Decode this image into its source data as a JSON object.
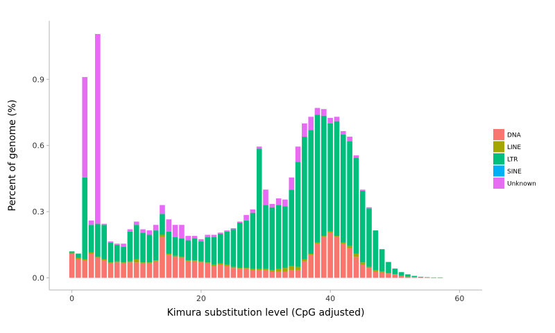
{
  "chart_data": {
    "type": "bar",
    "stacked": true,
    "xlabel": "Kimura substitution level (CpG adjusted)",
    "ylabel": "Percent of genome (%)",
    "xlim": [
      -3.5,
      63.5
    ],
    "ylim": [
      -0.055,
      1.165
    ],
    "xticks": [
      0,
      20,
      40,
      60
    ],
    "yticks": [
      0.0,
      0.3,
      0.6,
      0.9
    ],
    "ytick_labels": [
      "0.0",
      "0.3",
      "0.6",
      "0.9"
    ],
    "grid": false,
    "legend_position": "right",
    "bins": [
      0,
      1,
      2,
      3,
      4,
      5,
      6,
      7,
      8,
      9,
      10,
      11,
      12,
      13,
      14,
      15,
      16,
      17,
      18,
      19,
      20,
      21,
      22,
      23,
      24,
      25,
      26,
      27,
      28,
      29,
      30,
      31,
      32,
      33,
      34,
      35,
      36,
      37,
      38,
      39,
      40,
      41,
      42,
      43,
      44,
      45,
      46,
      47,
      48,
      49,
      50,
      51,
      52,
      53,
      54,
      55,
      56,
      57
    ],
    "series": [
      {
        "name": "DNA",
        "color": "#F8766D",
        "values": [
          0.11,
          0.085,
          0.08,
          0.11,
          0.09,
          0.08,
          0.065,
          0.07,
          0.065,
          0.07,
          0.07,
          0.065,
          0.065,
          0.075,
          0.185,
          0.105,
          0.095,
          0.09,
          0.075,
          0.075,
          0.07,
          0.065,
          0.055,
          0.06,
          0.055,
          0.045,
          0.04,
          0.04,
          0.035,
          0.035,
          0.035,
          0.03,
          0.03,
          0.03,
          0.035,
          0.035,
          0.075,
          0.105,
          0.155,
          0.185,
          0.205,
          0.185,
          0.155,
          0.135,
          0.095,
          0.06,
          0.045,
          0.03,
          0.025,
          0.02,
          0.015,
          0.01,
          0.005,
          0.003,
          0.002,
          0.001,
          0.001,
          0.001
        ]
      },
      {
        "name": "LINE",
        "color": "#A3A500",
        "values": [
          0.003,
          0.005,
          0.005,
          0.005,
          0.005,
          0.005,
          0.005,
          0.005,
          0.005,
          0.005,
          0.015,
          0.005,
          0.005,
          0.005,
          0.01,
          0.005,
          0.005,
          0.005,
          0.005,
          0.005,
          0.005,
          0.005,
          0.005,
          0.005,
          0.005,
          0.005,
          0.005,
          0.005,
          0.005,
          0.005,
          0.005,
          0.005,
          0.01,
          0.015,
          0.02,
          0.015,
          0.01,
          0.005,
          0.005,
          0.005,
          0.005,
          0.005,
          0.005,
          0.01,
          0.015,
          0.01,
          0.005,
          0.005,
          0.005,
          0.002,
          0.002,
          0.001,
          0.001,
          0.001,
          0,
          0,
          0,
          0
        ]
      },
      {
        "name": "LTR",
        "color": "#00BF7D",
        "values": [
          0.007,
          0.02,
          0.37,
          0.125,
          0.15,
          0.155,
          0.09,
          0.075,
          0.07,
          0.135,
          0.155,
          0.135,
          0.125,
          0.135,
          0.095,
          0.1,
          0.085,
          0.085,
          0.09,
          0.1,
          0.09,
          0.115,
          0.125,
          0.135,
          0.15,
          0.17,
          0.205,
          0.215,
          0.255,
          0.545,
          0.29,
          0.285,
          0.29,
          0.28,
          0.345,
          0.475,
          0.555,
          0.56,
          0.58,
          0.545,
          0.49,
          0.52,
          0.49,
          0.475,
          0.435,
          0.325,
          0.265,
          0.18,
          0.1,
          0.05,
          0.025,
          0.015,
          0.01,
          0.005,
          0.003,
          0.002,
          0.001,
          0.001
        ]
      },
      {
        "name": "SINE",
        "color": "#00B0F6",
        "values": [
          0,
          0,
          0,
          0,
          0,
          0,
          0,
          0,
          0,
          0,
          0,
          0,
          0,
          0,
          0,
          0,
          0,
          0,
          0,
          0,
          0,
          0,
          0,
          0,
          0,
          0,
          0,
          0,
          0,
          0,
          0,
          0,
          0,
          0,
          0,
          0,
          0,
          0,
          0,
          0,
          0,
          0,
          0,
          0,
          0,
          0,
          0,
          0,
          0,
          0,
          0,
          0,
          0,
          0,
          0,
          0,
          0,
          0
        ]
      },
      {
        "name": "Unknown",
        "color": "#E76BF3",
        "values": [
          0,
          0,
          0.455,
          0.02,
          0.86,
          0.005,
          0.005,
          0.005,
          0.015,
          0.01,
          0.015,
          0.015,
          0.02,
          0.025,
          0.04,
          0.055,
          0.055,
          0.06,
          0.02,
          0.01,
          0.01,
          0.01,
          0.01,
          0.005,
          0.005,
          0.005,
          0.005,
          0.025,
          0.015,
          0.01,
          0.07,
          0.015,
          0.03,
          0.03,
          0.055,
          0.07,
          0.06,
          0.06,
          0.03,
          0.03,
          0.025,
          0.02,
          0.015,
          0.02,
          0.01,
          0.005,
          0.005,
          0,
          0,
          0,
          0,
          0,
          0,
          0,
          0,
          0,
          0,
          0
        ]
      }
    ]
  }
}
